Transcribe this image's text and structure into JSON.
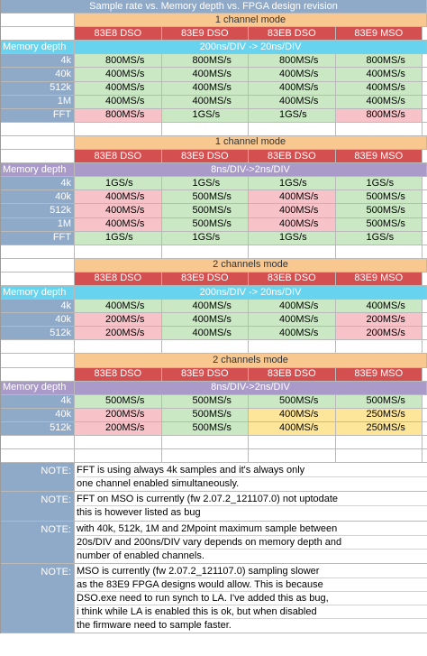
{
  "title": "Sample rate vs. Memory depth vs. FPGA design revision",
  "sections": [
    {
      "mode": "1 channel mode",
      "headers": [
        "83E8 DSO",
        "83E9 DSO",
        "83EB DSO",
        "83E9 MSO"
      ],
      "depth_label": "Memory depth",
      "timebase": "200ns/DIV -> 20ns/DIV",
      "timebase_style": "cyan",
      "rows": [
        {
          "label": "4k",
          "cells": [
            [
              "800MS/s",
              "g"
            ],
            [
              "800MS/s",
              "g"
            ],
            [
              "800MS/s",
              "g"
            ],
            [
              "800MS/s",
              "g"
            ]
          ]
        },
        {
          "label": "40k",
          "cells": [
            [
              "400MS/s",
              "g"
            ],
            [
              "400MS/s",
              "g"
            ],
            [
              "400MS/s",
              "g"
            ],
            [
              "400MS/s",
              "g"
            ]
          ]
        },
        {
          "label": "512k",
          "cells": [
            [
              "400MS/s",
              "g"
            ],
            [
              "400MS/s",
              "g"
            ],
            [
              "400MS/s",
              "g"
            ],
            [
              "400MS/s",
              "g"
            ]
          ]
        },
        {
          "label": "1M",
          "cells": [
            [
              "400MS/s",
              "g"
            ],
            [
              "400MS/s",
              "g"
            ],
            [
              "400MS/s",
              "g"
            ],
            [
              "400MS/s",
              "g"
            ]
          ]
        },
        {
          "label": "FFT",
          "cells": [
            [
              "800MS/s",
              "p"
            ],
            [
              "1GS/s",
              "g"
            ],
            [
              "1GS/s",
              "g"
            ],
            [
              "800MS/s",
              "p"
            ]
          ]
        }
      ]
    },
    {
      "mode": "1 channel mode",
      "headers": [
        "83E8 DSO",
        "83E9 DSO",
        "83EB DSO",
        "83E9 MSO"
      ],
      "depth_label": "Memory depth",
      "timebase": "8ns/DIV->2ns/DIV",
      "timebase_style": "purple",
      "rows": [
        {
          "label": "4k",
          "cells": [
            [
              "1GS/s",
              "g"
            ],
            [
              "1GS/s",
              "g"
            ],
            [
              "1GS/s",
              "g"
            ],
            [
              "1GS/s",
              "g"
            ]
          ]
        },
        {
          "label": "40k",
          "cells": [
            [
              "400MS/s",
              "p"
            ],
            [
              "500MS/s",
              "g"
            ],
            [
              "400MS/s",
              "p"
            ],
            [
              "500MS/s",
              "g"
            ]
          ]
        },
        {
          "label": "512k",
          "cells": [
            [
              "400MS/s",
              "p"
            ],
            [
              "500MS/s",
              "g"
            ],
            [
              "400MS/s",
              "p"
            ],
            [
              "500MS/s",
              "g"
            ]
          ]
        },
        {
          "label": "1M",
          "cells": [
            [
              "400MS/s",
              "p"
            ],
            [
              "500MS/s",
              "g"
            ],
            [
              "400MS/s",
              "p"
            ],
            [
              "500MS/s",
              "g"
            ]
          ]
        },
        {
          "label": "FFT",
          "cells": [
            [
              "1GS/s",
              "g"
            ],
            [
              "1GS/s",
              "g"
            ],
            [
              "1GS/s",
              "g"
            ],
            [
              "1GS/s",
              "g"
            ]
          ]
        }
      ]
    },
    {
      "mode": "2 channels mode",
      "headers": [
        "83E8 DSO",
        "83E9 DSO",
        "83EB DSO",
        "83E9 MSO"
      ],
      "depth_label": "Memory depth",
      "timebase": "200ns/DIV -> 20ns/DIV",
      "timebase_style": "cyan",
      "rows": [
        {
          "label": "4k",
          "cells": [
            [
              "400MS/s",
              "g"
            ],
            [
              "400MS/s",
              "g"
            ],
            [
              "400MS/s",
              "g"
            ],
            [
              "400MS/s",
              "g"
            ]
          ]
        },
        {
          "label": "40k",
          "cells": [
            [
              "200MS/s",
              "p"
            ],
            [
              "400MS/s",
              "g"
            ],
            [
              "400MS/s",
              "g"
            ],
            [
              "200MS/s",
              "p"
            ]
          ]
        },
        {
          "label": "512k",
          "cells": [
            [
              "200MS/s",
              "p"
            ],
            [
              "400MS/s",
              "g"
            ],
            [
              "400MS/s",
              "g"
            ],
            [
              "200MS/s",
              "p"
            ]
          ]
        }
      ]
    },
    {
      "mode": "2 channels mode",
      "headers": [
        "83E8 DSO",
        "83E9 DSO",
        "83EB DSO",
        "83E9 MSO"
      ],
      "depth_label": "Memory depth",
      "timebase": "8ns/DIV->2ns/DIV",
      "timebase_style": "purple",
      "rows": [
        {
          "label": "4k",
          "cells": [
            [
              "500MS/s",
              "g"
            ],
            [
              "500MS/s",
              "g"
            ],
            [
              "500MS/s",
              "g"
            ],
            [
              "500MS/s",
              "g"
            ]
          ]
        },
        {
          "label": "40k",
          "cells": [
            [
              "200MS/s",
              "p"
            ],
            [
              "500MS/s",
              "g"
            ],
            [
              "400MS/s",
              "y"
            ],
            [
              "250MS/s",
              "y"
            ]
          ]
        },
        {
          "label": "512k",
          "cells": [
            [
              "200MS/s",
              "p"
            ],
            [
              "500MS/s",
              "g"
            ],
            [
              "400MS/s",
              "y"
            ],
            [
              "250MS/s",
              "y"
            ]
          ]
        }
      ]
    }
  ],
  "notes": [
    {
      "label": "NOTE:",
      "lines": [
        "FFT is using always 4k samples and it's always only",
        "one channel enabled simultaneously."
      ]
    },
    {
      "label": "NOTE:",
      "lines": [
        "FFT on MSO is currently (fw 2.07.2_121107.0) not uptodate",
        "this is however listed as bug"
      ]
    },
    {
      "label": "NOTE:",
      "lines": [
        "with 40k, 512k, 1M and 2Mpoint maximum sample between",
        "20s/DIV and 200ns/DIV vary depends on memory depth and",
        "number of enabled channels."
      ]
    },
    {
      "label": "NOTE:",
      "lines": [
        "MSO is currently (fw 2.07.2_121107.0) sampling slower",
        "as the 83E9 FPGA designs would allow. This is because",
        "DSO.exe need to run synch to LA. I've added this as bug,",
        "i think while LA is enabled this is ok, but when disabled",
        "the firmware need to sample faster."
      ]
    }
  ]
}
